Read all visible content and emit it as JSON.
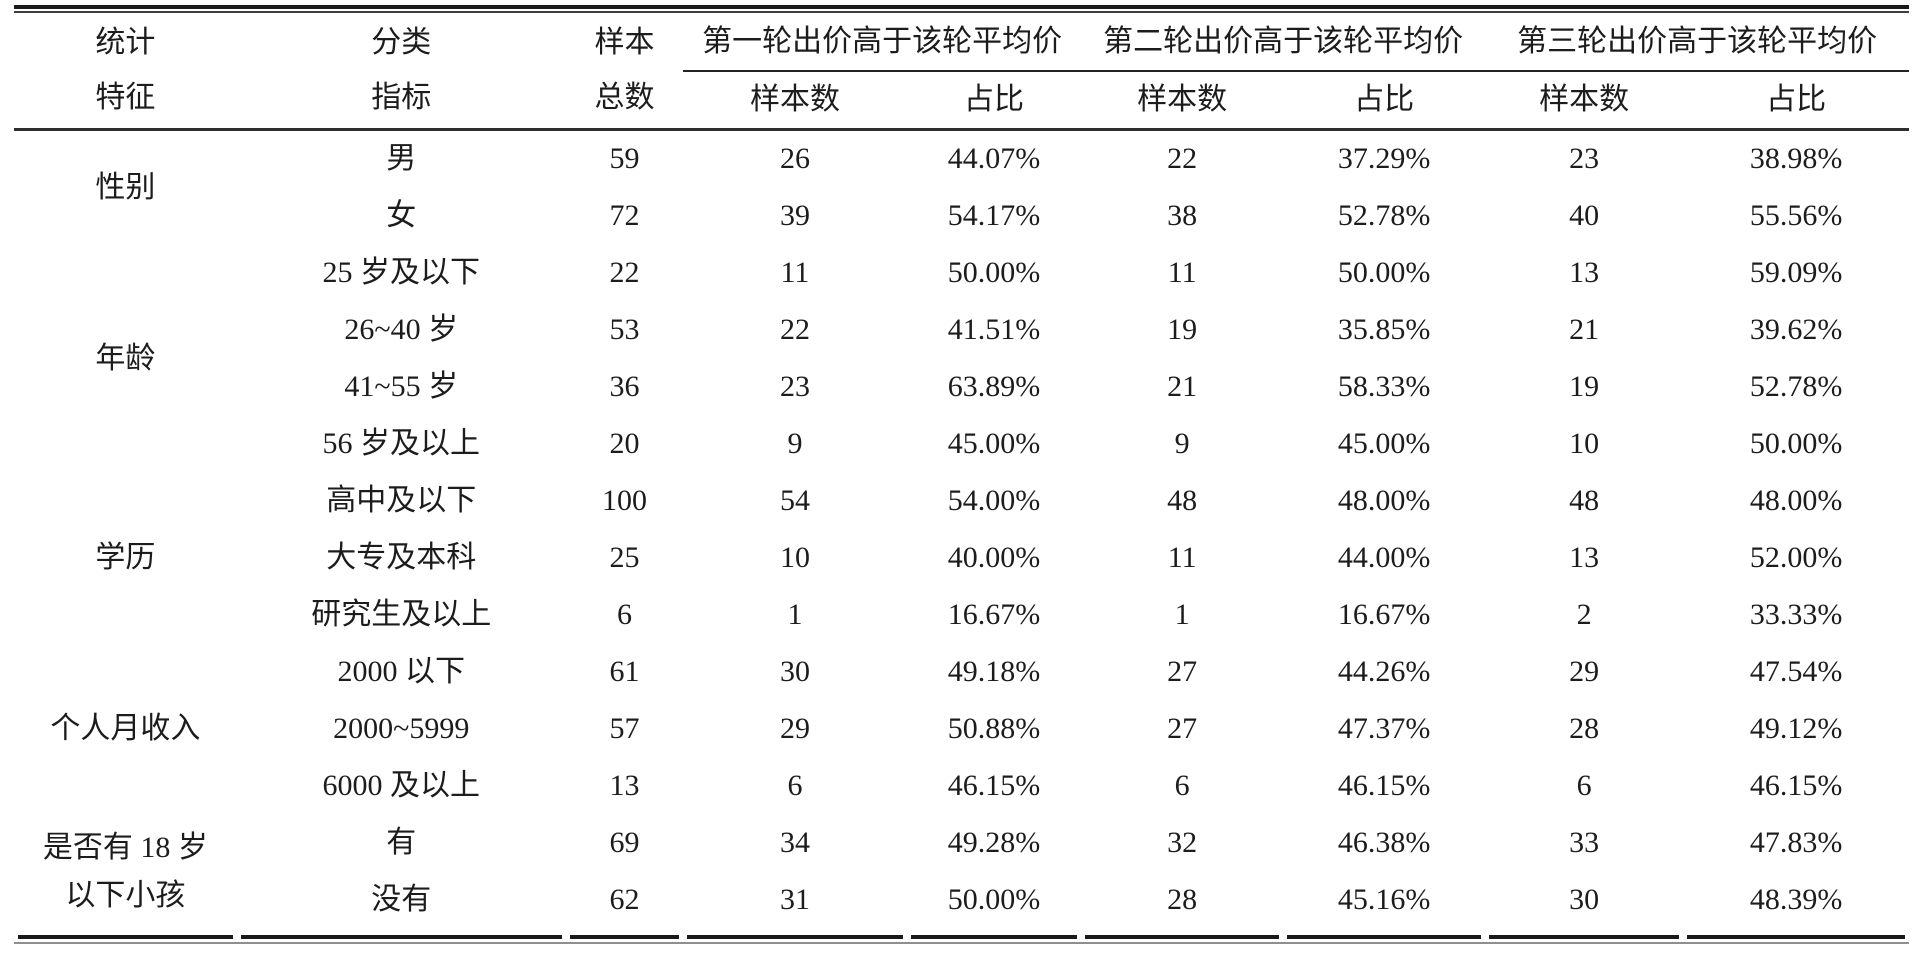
{
  "table": {
    "header": {
      "stat_feature": "统计\n特征",
      "class_indicator": "分类\n指标",
      "sample_total": "样本\n总数",
      "round_groups": [
        "第一轮出价高于该轮平均价",
        "第二轮出价高于该轮平均价",
        "第三轮出价高于该轮平均价"
      ],
      "sub_sample_count": "样本数",
      "sub_ratio": "占比"
    },
    "rows": [
      {
        "group": "性别",
        "group_rowspan": 2,
        "category": "男",
        "total": "59",
        "r1_n": "26",
        "r1_p": "44.07%",
        "r2_n": "22",
        "r2_p": "37.29%",
        "r3_n": "23",
        "r3_p": "38.98%"
      },
      {
        "category": "女",
        "total": "72",
        "r1_n": "39",
        "r1_p": "54.17%",
        "r2_n": "38",
        "r2_p": "52.78%",
        "r3_n": "40",
        "r3_p": "55.56%"
      },
      {
        "group": "年龄",
        "group_rowspan": 4,
        "category": "25 岁及以下",
        "total": "22",
        "r1_n": "11",
        "r1_p": "50.00%",
        "r2_n": "11",
        "r2_p": "50.00%",
        "r3_n": "13",
        "r3_p": "59.09%"
      },
      {
        "category": "26~40 岁",
        "total": "53",
        "r1_n": "22",
        "r1_p": "41.51%",
        "r2_n": "19",
        "r2_p": "35.85%",
        "r3_n": "21",
        "r3_p": "39.62%"
      },
      {
        "category": "41~55 岁",
        "total": "36",
        "r1_n": "23",
        "r1_p": "63.89%",
        "r2_n": "21",
        "r2_p": "58.33%",
        "r3_n": "19",
        "r3_p": "52.78%"
      },
      {
        "category": "56 岁及以上",
        "total": "20",
        "r1_n": "9",
        "r1_p": "45.00%",
        "r2_n": "9",
        "r2_p": "45.00%",
        "r3_n": "10",
        "r3_p": "50.00%"
      },
      {
        "group": "学历",
        "group_rowspan": 3,
        "category": "高中及以下",
        "total": "100",
        "r1_n": "54",
        "r1_p": "54.00%",
        "r2_n": "48",
        "r2_p": "48.00%",
        "r3_n": "48",
        "r3_p": "48.00%"
      },
      {
        "category": "大专及本科",
        "total": "25",
        "r1_n": "10",
        "r1_p": "40.00%",
        "r2_n": "11",
        "r2_p": "44.00%",
        "r3_n": "13",
        "r3_p": "52.00%"
      },
      {
        "category": "研究生及以上",
        "total": "6",
        "r1_n": "1",
        "r1_p": "16.67%",
        "r2_n": "1",
        "r2_p": "16.67%",
        "r3_n": "2",
        "r3_p": "33.33%"
      },
      {
        "group": "个人月收入",
        "group_rowspan": 3,
        "category": "2000 以下",
        "total": "61",
        "r1_n": "30",
        "r1_p": "49.18%",
        "r2_n": "27",
        "r2_p": "44.26%",
        "r3_n": "29",
        "r3_p": "47.54%"
      },
      {
        "category": "2000~5999",
        "total": "57",
        "r1_n": "29",
        "r1_p": "50.88%",
        "r2_n": "27",
        "r2_p": "47.37%",
        "r3_n": "28",
        "r3_p": "49.12%"
      },
      {
        "category": "6000 及以上",
        "total": "13",
        "r1_n": "6",
        "r1_p": "46.15%",
        "r2_n": "6",
        "r2_p": "46.15%",
        "r3_n": "6",
        "r3_p": "46.15%"
      },
      {
        "group": "是否有 18 岁\n以下小孩",
        "group_rowspan": 2,
        "category": "有",
        "total": "69",
        "r1_n": "34",
        "r1_p": "49.28%",
        "r2_n": "32",
        "r2_p": "46.38%",
        "r3_n": "33",
        "r3_p": "47.83%"
      },
      {
        "category": "没有",
        "total": "62",
        "r1_n": "31",
        "r1_p": "50.00%",
        "r2_n": "28",
        "r2_p": "45.16%",
        "r3_n": "30",
        "r3_p": "48.39%"
      }
    ]
  },
  "colors": {
    "background": "#ffffff",
    "ink": "#1c1c1c",
    "rule_dark": "#1a1a1a",
    "rule_mid": "#2e2e2e",
    "rule_light": "#8f8f8f"
  }
}
